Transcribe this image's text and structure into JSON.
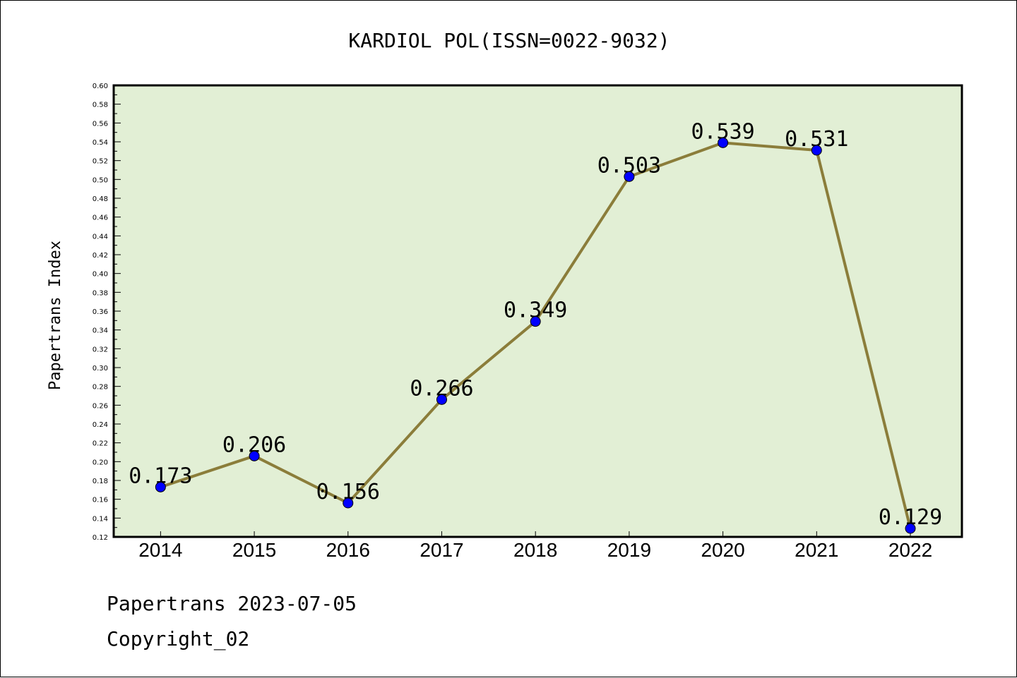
{
  "chart_data": {
    "type": "line",
    "title": "KARDIOL POL(ISSN=0022-9032)",
    "ylabel": "Papertrans Index",
    "xlabel": "",
    "categories": [
      "2014",
      "2015",
      "2016",
      "2017",
      "2018",
      "2019",
      "2020",
      "2021",
      "2022"
    ],
    "values": [
      0.173,
      0.206,
      0.156,
      0.266,
      0.349,
      0.503,
      0.539,
      0.531,
      0.129
    ],
    "data_labels": [
      "0.173",
      "0.206",
      "0.156",
      "0.266",
      "0.349",
      "0.503",
      "0.539",
      "0.531",
      "0.129"
    ],
    "ylim": [
      0.12,
      0.6
    ],
    "yticks": [
      "0.12",
      "0.14",
      "0.16",
      "0.18",
      "0.20",
      "0.22",
      "0.24",
      "0.26",
      "0.28",
      "0.30",
      "0.32",
      "0.34",
      "0.36",
      "0.38",
      "0.40",
      "0.42",
      "0.44",
      "0.46",
      "0.48",
      "0.50",
      "0.52",
      "0.54",
      "0.56",
      "0.58",
      "0.60"
    ],
    "grid": false,
    "colors": {
      "line": "#8B7D3A",
      "marker": "#0000FF",
      "plot_background": "#E2EFD5"
    }
  },
  "footer": {
    "line1": "Papertrans 2023-07-05",
    "line2": "Copyright_02"
  }
}
